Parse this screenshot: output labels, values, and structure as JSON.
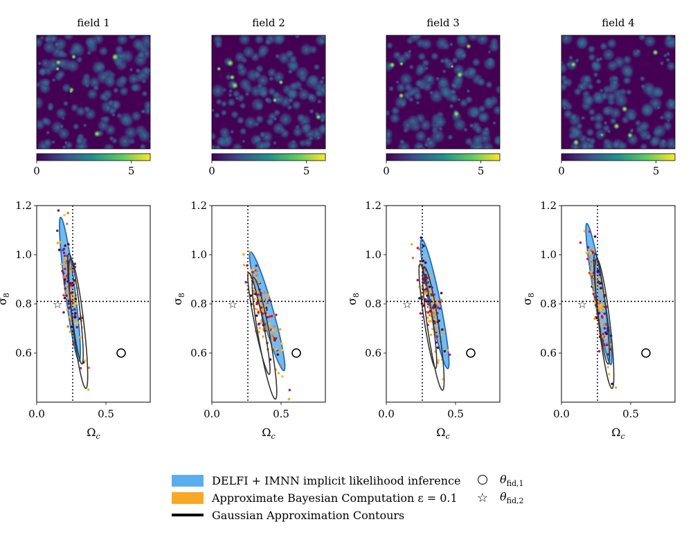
{
  "colors": {
    "delfi": "#5aaef0",
    "delfi_edge": "#1f6fb8",
    "abc": "#f9a825",
    "gauss": "#333333",
    "fiducial_line": "#1a1a4e",
    "viridis_low": "#440154",
    "viridis_high": "#fde725"
  },
  "fields": [
    {
      "title": "field 1",
      "cbar_ticks": [
        "0",
        "5"
      ]
    },
    {
      "title": "field 2",
      "cbar_ticks": [
        "0",
        "5"
      ]
    },
    {
      "title": "field 3",
      "cbar_ticks": [
        "0",
        "5"
      ]
    },
    {
      "title": "field 4",
      "cbar_ticks": [
        "0",
        "5"
      ]
    }
  ],
  "colorbar": {
    "min": 0,
    "max": 6,
    "ticks": [
      0,
      5
    ]
  },
  "chart_data": [
    {
      "type": "scatter",
      "panel": 1,
      "xlabel": "Ω",
      "xlabel_sub": "c",
      "ylabel": "σ",
      "ylabel_sub": "8",
      "xlim": [
        0.0,
        0.82
      ],
      "ylim": [
        0.4,
        1.2
      ],
      "xticks": [
        "0.0",
        "0.5"
      ],
      "yticks": [
        "1.2",
        "1.0",
        "0.8",
        "0.6"
      ],
      "fiducial_lines": {
        "x": 0.26,
        "y": 0.81
      },
      "theta_fid_1": {
        "x": 0.61,
        "y": 0.6
      },
      "theta_fid_2": {
        "x": 0.15,
        "y": 0.8
      },
      "delfi_contour": {
        "center": [
          0.24,
          0.86
        ],
        "angle_deg": -77,
        "semi_major": 0.3,
        "semi_minor": 0.035
      },
      "gaussian_contours": [
        {
          "center": [
            0.28,
            0.78
          ],
          "angle_deg": -78,
          "semi_major": 0.23,
          "semi_minor": 0.03
        },
        {
          "center": [
            0.3,
            0.72
          ],
          "angle_deg": -78,
          "semi_major": 0.27,
          "semi_minor": 0.04
        }
      ],
      "abc_samples": {
        "count": 140,
        "center": [
          0.25,
          0.84
        ],
        "spread_major": 0.25,
        "spread_minor": 0.025,
        "angle_deg": -77
      }
    },
    {
      "type": "scatter",
      "panel": 2,
      "xlabel": "Ω",
      "xlabel_sub": "c",
      "ylabel": "σ",
      "ylabel_sub": "8",
      "xlim": [
        0.0,
        0.82
      ],
      "ylim": [
        0.4,
        1.2
      ],
      "xticks": [
        "0.0",
        "0.5"
      ],
      "yticks": [
        "1.2",
        "1.0",
        "0.8",
        "0.6"
      ],
      "fiducial_lines": {
        "x": 0.26,
        "y": 0.81
      },
      "theta_fid_1": {
        "x": 0.61,
        "y": 0.6
      },
      "theta_fid_2": {
        "x": 0.15,
        "y": 0.8
      },
      "delfi_contour": {
        "center": [
          0.4,
          0.77
        ],
        "angle_deg": -63,
        "semi_major": 0.27,
        "semi_minor": 0.04
      },
      "gaussian_contours": [
        {
          "center": [
            0.34,
            0.72
          ],
          "angle_deg": -70,
          "semi_major": 0.22,
          "semi_minor": 0.03
        },
        {
          "center": [
            0.38,
            0.66
          ],
          "angle_deg": -72,
          "semi_major": 0.26,
          "semi_minor": 0.04
        }
      ],
      "abc_samples": {
        "count": 140,
        "center": [
          0.38,
          0.76
        ],
        "spread_major": 0.26,
        "spread_minor": 0.03,
        "angle_deg": -62
      }
    },
    {
      "type": "scatter",
      "panel": 3,
      "xlabel": "Ω",
      "xlabel_sub": "c",
      "ylabel": "σ",
      "ylabel_sub": "8",
      "xlim": [
        0.0,
        0.82
      ],
      "ylim": [
        0.4,
        1.2
      ],
      "xticks": [
        "0.0",
        "0.5"
      ],
      "yticks": [
        "1.2",
        "1.0",
        "0.8",
        "0.6"
      ],
      "fiducial_lines": {
        "x": 0.26,
        "y": 0.81
      },
      "theta_fid_1": {
        "x": 0.61,
        "y": 0.6
      },
      "theta_fid_2": {
        "x": 0.15,
        "y": 0.8
      },
      "delfi_contour": {
        "center": [
          0.35,
          0.8
        ],
        "angle_deg": -70,
        "semi_major": 0.28,
        "semi_minor": 0.04
      },
      "gaussian_contours": [
        {
          "center": [
            0.3,
            0.75
          ],
          "angle_deg": -75,
          "semi_major": 0.22,
          "semi_minor": 0.03
        },
        {
          "center": [
            0.34,
            0.7
          ],
          "angle_deg": -75,
          "semi_major": 0.26,
          "semi_minor": 0.04
        }
      ],
      "abc_samples": {
        "count": 140,
        "center": [
          0.32,
          0.8
        ],
        "spread_major": 0.24,
        "spread_minor": 0.03,
        "angle_deg": -70
      }
    },
    {
      "type": "scatter",
      "panel": 4,
      "xlabel": "Ω",
      "xlabel_sub": "c",
      "ylabel": "σ",
      "ylabel_sub": "8",
      "xlim": [
        0.0,
        0.82
      ],
      "ylim": [
        0.4,
        1.2
      ],
      "xticks": [
        "0.0",
        "0.5"
      ],
      "yticks": [
        "1.2",
        "1.0",
        "0.8",
        "0.6"
      ],
      "fiducial_lines": {
        "x": 0.26,
        "y": 0.81
      },
      "theta_fid_1": {
        "x": 0.61,
        "y": 0.6
      },
      "theta_fid_2": {
        "x": 0.15,
        "y": 0.8
      },
      "delfi_contour": {
        "center": [
          0.27,
          0.84
        ],
        "angle_deg": -73,
        "semi_major": 0.3,
        "semi_minor": 0.035
      },
      "gaussian_contours": [
        {
          "center": [
            0.29,
            0.78
          ],
          "angle_deg": -78,
          "semi_major": 0.23,
          "semi_minor": 0.03
        },
        {
          "center": [
            0.31,
            0.72
          ],
          "angle_deg": -78,
          "semi_major": 0.27,
          "semi_minor": 0.04
        }
      ],
      "abc_samples": {
        "count": 140,
        "center": [
          0.26,
          0.84
        ],
        "spread_major": 0.27,
        "spread_minor": 0.025,
        "angle_deg": -73
      }
    }
  ],
  "legend": {
    "delfi_label": "DELFI + IMNN implicit likelihood inference",
    "abc_label": "Approximate Bayesian Computation ε = 0.1",
    "gauss_label": "Gaussian Approximation Contours",
    "theta1_symbol": "θ",
    "theta1_sub": "fid,1",
    "theta2_symbol": "θ",
    "theta2_sub": "fid,2"
  }
}
